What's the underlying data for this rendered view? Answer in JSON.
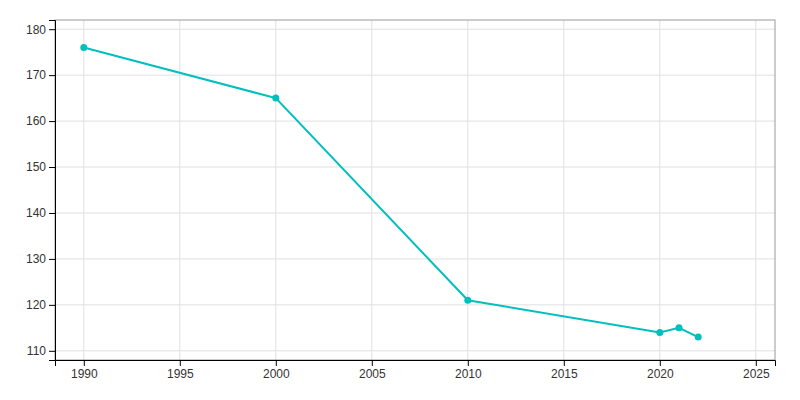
{
  "chart_data": {
    "type": "line",
    "x": [
      1990,
      2000,
      2010,
      2020,
      2021,
      2022
    ],
    "values": [
      176,
      165,
      121,
      114,
      115,
      113
    ],
    "color": "#00BFBF",
    "marker": "circle",
    "xlim": [
      1988.5,
      2026
    ],
    "ylim": [
      108,
      182
    ],
    "xticks": [
      1990,
      1995,
      2000,
      2005,
      2010,
      2015,
      2020,
      2025
    ],
    "yticks": [
      110,
      120,
      130,
      140,
      150,
      160,
      170,
      180
    ],
    "grid": true
  }
}
